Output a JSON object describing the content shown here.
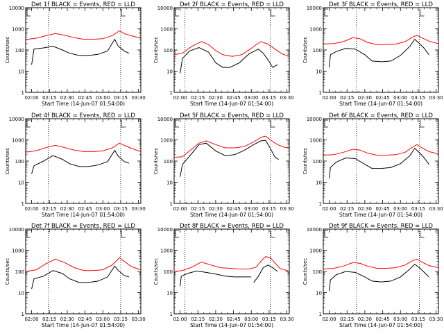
{
  "chart_data": [
    {
      "type": "line",
      "title": "Det 1f BLACK = Events, RED = LLD",
      "xlabel": "Start Time (14-Jun-07 01:54:00)",
      "ylabel": "Counts/sec",
      "xticks": [
        "02:00",
        "02:15",
        "02:30",
        "02:45",
        "03:00",
        "03:15",
        "03:30"
      ],
      "yticks": [
        "1",
        "10",
        "100",
        "1000",
        "10000"
      ],
      "ylog": true,
      "ylim": [
        1,
        10000
      ],
      "xlim_minutes": [
        115,
        212
      ],
      "dotted_lines_minutes": [
        134,
        195
      ],
      "series": [
        {
          "color": "#000000",
          "x": [
            120,
            122,
            130,
            138,
            146,
            152,
            160,
            168,
            176,
            184,
            190,
            193,
            196,
            198,
            202
          ],
          "y": [
            20,
            110,
            125,
            150,
            100,
            70,
            55,
            55,
            62,
            90,
            320,
            150,
            110,
            90,
            70
          ],
          "gap_after": []
        },
        {
          "color": "#ff0000",
          "x": [
            115,
            124,
            132,
            140,
            148,
            156,
            164,
            172,
            180,
            188,
            194,
            198,
            204,
            212
          ],
          "y": [
            310,
            360,
            470,
            600,
            490,
            380,
            320,
            320,
            340,
            480,
            800,
            600,
            470,
            360
          ]
        }
      ]
    },
    {
      "type": "line",
      "title": "Det 2f BLACK = Events, RED = LLD",
      "xlabel": "Start Time (14-Jun-07 01:54:00)",
      "ylabel": "Counts/sec",
      "xticks": [
        "02:00",
        "02:15",
        "02:30",
        "02:45",
        "03:00",
        "03:15",
        "03:30"
      ],
      "yticks": [
        "1",
        "10",
        "100",
        "1000",
        "10000"
      ],
      "ylog": true,
      "ylim": [
        1,
        10000
      ],
      "xlim_minutes": [
        115,
        212
      ],
      "dotted_lines_minutes": [
        124,
        196
      ],
      "series": [
        {
          "color": "#000000",
          "x": [
            120,
            122,
            128,
            136,
            144,
            150,
            156,
            162,
            170,
            178,
            186,
            190,
            194,
            198,
            202
          ],
          "y": [
            8,
            40,
            90,
            130,
            80,
            25,
            15,
            15,
            25,
            65,
            110,
            70,
            35,
            15,
            20
          ],
          "gap_after": []
        },
        {
          "color": "#ff0000",
          "x": [
            115,
            122,
            130,
            138,
            144,
            150,
            156,
            164,
            172,
            180,
            188,
            194,
            200,
            206,
            212
          ],
          "y": [
            60,
            70,
            150,
            250,
            180,
            95,
            60,
            50,
            60,
            120,
            250,
            190,
            110,
            65,
            50
          ]
        }
      ]
    },
    {
      "type": "line",
      "title": "Det 3f BLACK = Events, RED = LLD",
      "xlabel": "Start Time (14-Jun-07 01:54:00)",
      "ylabel": "Counts/sec",
      "xticks": [
        "02:00",
        "02:15",
        "02:30",
        "02:45",
        "03:00",
        "03:15",
        "03:30"
      ],
      "yticks": [
        "1",
        "10",
        "100",
        "1000",
        "10000"
      ],
      "ylog": true,
      "ylim": [
        1,
        10000
      ],
      "xlim_minutes": [
        115,
        212
      ],
      "dotted_lines_minutes": [
        143,
        196
      ],
      "series": [
        {
          "color": "#000000",
          "x": [
            120,
            121,
            126,
            134,
            142,
            150,
            156,
            164,
            172,
            180,
            188,
            192,
            196,
            200,
            204
          ],
          "y": [
            15,
            60,
            85,
            120,
            110,
            60,
            30,
            28,
            30,
            55,
            150,
            320,
            200,
            120,
            60
          ],
          "gap_after": []
        },
        {
          "color": "#ff0000",
          "x": [
            115,
            124,
            132,
            140,
            146,
            152,
            160,
            168,
            176,
            184,
            190,
            194,
            198,
            204,
            212
          ],
          "y": [
            190,
            200,
            250,
            380,
            340,
            230,
            180,
            180,
            190,
            250,
            400,
            500,
            380,
            260,
            200
          ]
        }
      ]
    },
    {
      "type": "line",
      "title": "Det 4f BLACK = Events, RED = LLD",
      "xlabel": "Start Time (14-Jun-07 01:54:00)",
      "ylabel": "Counts/sec",
      "xticks": [
        "02:00",
        "02:15",
        "02:30",
        "02:45",
        "03:00",
        "03:15",
        "03:30"
      ],
      "yticks": [
        "1",
        "10",
        "100",
        "1000",
        "10000"
      ],
      "ylog": true,
      "ylim": [
        1,
        10000
      ],
      "xlim_minutes": [
        115,
        212
      ],
      "dotted_lines_minutes": [
        134,
        195
      ],
      "series": [
        {
          "color": "#000000",
          "x": [
            120,
            122,
            130,
            138,
            146,
            152,
            160,
            168,
            176,
            184,
            190,
            193,
            196,
            198,
            202
          ],
          "y": [
            25,
            60,
            100,
            180,
            120,
            75,
            55,
            55,
            65,
            95,
            320,
            170,
            120,
            95,
            80
          ],
          "gap_after": []
        },
        {
          "color": "#ff0000",
          "x": [
            115,
            124,
            132,
            140,
            148,
            156,
            164,
            172,
            180,
            188,
            194,
            198,
            204,
            212
          ],
          "y": [
            260,
            310,
            430,
            550,
            430,
            330,
            280,
            280,
            300,
            420,
            700,
            550,
            400,
            280
          ]
        }
      ]
    },
    {
      "type": "line",
      "title": "Det 5f BLACK = Events, RED = LLD",
      "xlabel": "Start Time (14-Jun-07 01:54:00)",
      "ylabel": "Counts/sec",
      "xticks": [
        "02:00",
        "02:15",
        "02:30",
        "02:45",
        "03:00",
        "03:15",
        "03:30"
      ],
      "yticks": [
        "1",
        "10",
        "100",
        "1000",
        "10000"
      ],
      "ylog": true,
      "ylim": [
        1,
        10000
      ],
      "xlim_minutes": [
        115,
        212
      ],
      "dotted_lines_minutes": [
        124,
        196
      ],
      "series": [
        {
          "color": "#000000",
          "x": [
            120,
            122,
            128,
            136,
            142,
            150,
            158,
            166,
            174,
            182,
            188,
            192,
            196,
            200,
            203
          ],
          "y": [
            18,
            70,
            170,
            600,
            700,
            300,
            180,
            200,
            320,
            600,
            900,
            950,
            400,
            150,
            120
          ],
          "gap_after": []
        },
        {
          "color": "#ff0000",
          "x": [
            115,
            122,
            128,
            136,
            142,
            150,
            158,
            166,
            174,
            182,
            188,
            192,
            196,
            202,
            208,
            212
          ],
          "y": [
            150,
            160,
            300,
            700,
            900,
            600,
            420,
            420,
            480,
            800,
            1300,
            1500,
            1000,
            600,
            450,
            420
          ]
        }
      ]
    },
    {
      "type": "line",
      "title": "Det 6f BLACK = Events, RED = LLD",
      "xlabel": "Start Time (14-Jun-07 01:54:00)",
      "ylabel": "Counts/sec",
      "xticks": [
        "02:00",
        "02:15",
        "02:30",
        "02:45",
        "03:00",
        "03:15",
        "03:30"
      ],
      "yticks": [
        "1",
        "10",
        "100",
        "1000",
        "10000"
      ],
      "ylog": true,
      "ylim": [
        1,
        10000
      ],
      "xlim_minutes": [
        115,
        212
      ],
      "dotted_lines_minutes": [
        143,
        196
      ],
      "series": [
        {
          "color": "#000000",
          "x": [
            120,
            121,
            126,
            134,
            142,
            150,
            156,
            164,
            172,
            180,
            188,
            192,
            196,
            200,
            204
          ],
          "y": [
            15,
            50,
            90,
            140,
            130,
            70,
            45,
            45,
            50,
            75,
            180,
            400,
            250,
            140,
            70
          ],
          "gap_after": []
        },
        {
          "color": "#ff0000",
          "x": [
            115,
            124,
            132,
            140,
            146,
            152,
            160,
            168,
            176,
            184,
            190,
            194,
            198,
            204,
            212
          ],
          "y": [
            190,
            200,
            260,
            360,
            330,
            240,
            190,
            190,
            200,
            260,
            450,
            600,
            420,
            280,
            220
          ]
        }
      ]
    },
    {
      "type": "line",
      "title": "Det 7f BLACK = Events, RED = LLD",
      "xlabel": "Start Time (14-Jun-07 01:54:00)",
      "ylabel": "Counts/sec",
      "xticks": [
        "02:00",
        "02:15",
        "02:30",
        "02:45",
        "03:00",
        "03:15",
        "03:30"
      ],
      "yticks": [
        "1",
        "10",
        "100",
        "1000",
        "10000"
      ],
      "ylog": true,
      "ylim": [
        1,
        10000
      ],
      "xlim_minutes": [
        115,
        212
      ],
      "dotted_lines_minutes": [
        134,
        195
      ],
      "series": [
        {
          "color": "#000000",
          "x": [
            120,
            122,
            130,
            138,
            146,
            152,
            160,
            168,
            176,
            184,
            190,
            193,
            196,
            198,
            202
          ],
          "y": [
            15,
            45,
            60,
            110,
            80,
            45,
            30,
            30,
            35,
            55,
            180,
            110,
            80,
            65,
            55
          ],
          "gap_after": []
        },
        {
          "color": "#ff0000",
          "x": [
            115,
            124,
            132,
            140,
            148,
            156,
            164,
            172,
            180,
            188,
            194,
            198,
            204,
            212
          ],
          "y": [
            100,
            120,
            230,
            380,
            260,
            150,
            110,
            110,
            120,
            200,
            450,
            300,
            170,
            120
          ]
        }
      ]
    },
    {
      "type": "line",
      "title": "Det 8f BLACK = Events, RED = LLD",
      "xlabel": "Start Time (14-Jun-07 01:54:00)",
      "ylabel": "Counts/sec",
      "xticks": [
        "02:00",
        "02:15",
        "02:30",
        "02:45",
        "03:00",
        "03:15",
        "03:30"
      ],
      "yticks": [
        "1",
        "10",
        "100",
        "1000",
        "10000"
      ],
      "ylog": true,
      "ylim": [
        1,
        10000
      ],
      "xlim_minutes": [
        115,
        212
      ],
      "dotted_lines_minutes": [
        124,
        196
      ],
      "series": [
        {
          "color": "#000000",
          "x": [
            120,
            121,
            126,
            134,
            142,
            150,
            158,
            166,
            174,
            180
          ],
          "y": [
            20,
            60,
            80,
            105,
            90,
            75,
            60,
            55,
            55,
            55
          ],
          "gap_after": []
        },
        {
          "color": "#000000",
          "x": [
            182,
            186,
            190,
            194,
            198,
            202
          ],
          "y": [
            30,
            60,
            150,
            200,
            150,
            100
          ],
          "gap_after": []
        },
        {
          "color": "#ff0000",
          "x": [
            115,
            122,
            130,
            138,
            146,
            154,
            162,
            170,
            178,
            184,
            188,
            192,
            196,
            200,
            204,
            212
          ],
          "y": [
            100,
            110,
            160,
            280,
            200,
            150,
            140,
            130,
            130,
            160,
            300,
            500,
            450,
            250,
            140,
            100
          ]
        }
      ]
    },
    {
      "type": "line",
      "title": "Det 9f BLACK = Events, RED = LLD",
      "xlabel": "Start Time (14-Jun-07 01:54:00)",
      "ylabel": "Counts/sec",
      "xticks": [
        "02:00",
        "02:15",
        "02:30",
        "02:45",
        "03:00",
        "03:15",
        "03:30"
      ],
      "yticks": [
        "1",
        "10",
        "100",
        "1000",
        "10000"
      ],
      "ylog": true,
      "ylim": [
        1,
        10000
      ],
      "xlim_minutes": [
        115,
        212
      ],
      "dotted_lines_minutes": [
        143,
        196
      ],
      "series": [
        {
          "color": "#000000",
          "x": [
            120,
            121,
            126,
            134,
            142,
            150,
            156,
            164,
            172,
            180,
            188,
            192,
            196,
            200,
            204
          ],
          "y": [
            12,
            40,
            70,
            100,
            90,
            55,
            35,
            32,
            35,
            55,
            130,
            220,
            150,
            90,
            55
          ],
          "gap_after": []
        },
        {
          "color": "#ff0000",
          "x": [
            115,
            124,
            132,
            140,
            146,
            152,
            160,
            168,
            176,
            184,
            190,
            194,
            198,
            204,
            212
          ],
          "y": [
            130,
            140,
            180,
            260,
            240,
            180,
            140,
            140,
            150,
            200,
            320,
            380,
            280,
            190,
            150
          ]
        }
      ]
    }
  ]
}
